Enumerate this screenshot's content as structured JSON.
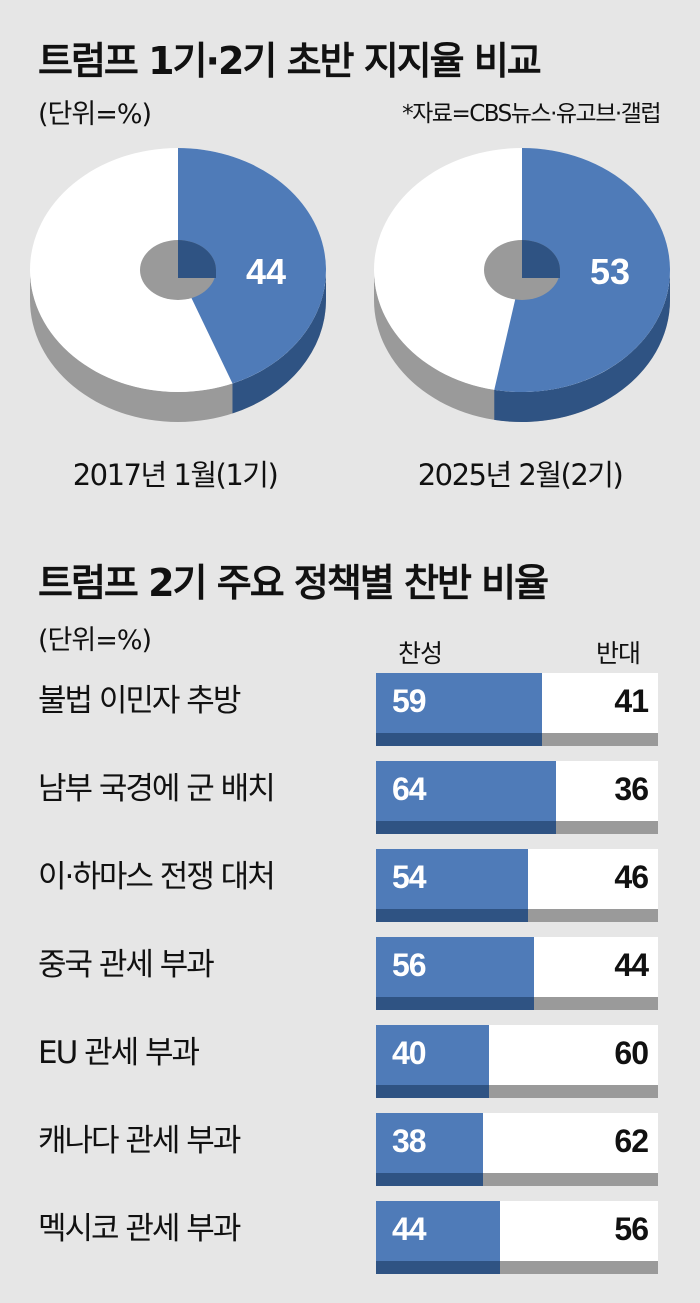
{
  "section1": {
    "title": "트럼프 1기·2기 초반 지지율 비교",
    "unit": "(단위=%)",
    "source": "*자료=CBS뉴스·유고브·갤럽"
  },
  "section2": {
    "title": "트럼프 2기 주요 정책별 찬반 비율",
    "unit": "(단위=%)",
    "col_support": "찬성",
    "col_oppose": "반대"
  },
  "colors": {
    "blue": "#4f7bb8",
    "blue_dark": "#2f5383",
    "white": "#ffffff",
    "grey": "#9a9a9a",
    "hole": "#9a9a9a"
  },
  "chart_data": [
    {
      "type": "pie",
      "title": "트럼프 1기·2기 초반 지지율 비교",
      "charts": [
        {
          "label": "2017년 1월(1기)",
          "value": 44,
          "value_text": "44"
        },
        {
          "label": "2025년 2월(2기)",
          "value": 53,
          "value_text": "53"
        }
      ]
    },
    {
      "type": "bar",
      "title": "트럼프 2기 주요 정책별 찬반 비율",
      "categories": [
        "불법 이민자 추방",
        "남부 국경에 군 배치",
        "이·하마스 전쟁 대처",
        "중국 관세 부과",
        "EU 관세 부과",
        "캐나다 관세 부과",
        "멕시코 관세 부과"
      ],
      "series": [
        {
          "name": "찬성",
          "values": [
            59,
            64,
            54,
            56,
            40,
            38,
            44
          ]
        },
        {
          "name": "반대",
          "values": [
            41,
            36,
            46,
            44,
            60,
            62,
            56
          ]
        }
      ],
      "rows": [
        {
          "label": "불법 이민자 추방",
          "support": "59",
          "oppose": "41"
        },
        {
          "label": "남부 국경에 군 배치",
          "support": "64",
          "oppose": "36"
        },
        {
          "label": "이·하마스 전쟁 대처",
          "support": "54",
          "oppose": "46"
        },
        {
          "label": "중국 관세 부과",
          "support": "56",
          "oppose": "44"
        },
        {
          "label": "EU 관세 부과",
          "support": "40",
          "oppose": "60"
        },
        {
          "label": "캐나다 관세 부과",
          "support": "38",
          "oppose": "62"
        },
        {
          "label": "멕시코 관세 부과",
          "support": "44",
          "oppose": "56"
        }
      ]
    }
  ]
}
